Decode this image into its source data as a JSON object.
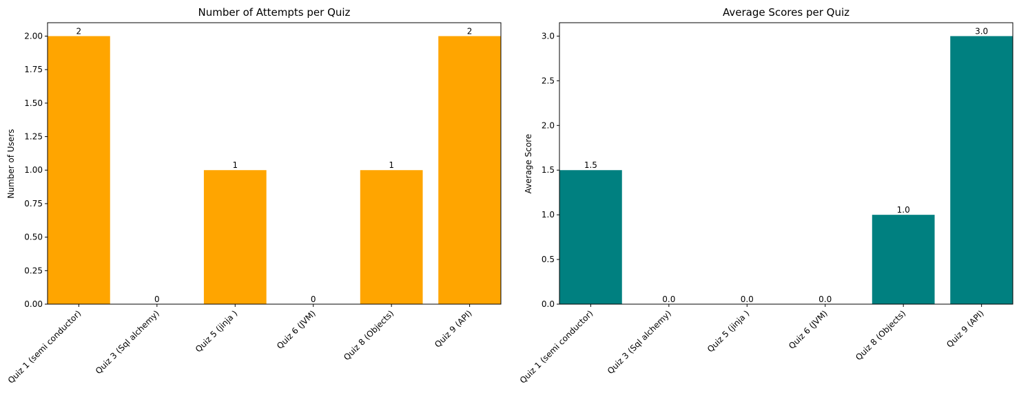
{
  "chart_data": [
    {
      "type": "bar",
      "title": "Number of Attempts per Quiz",
      "xlabel": "",
      "ylabel": "Number of Users",
      "categories": [
        "Quiz 1 (semi conductor)",
        "Quiz 3 (Sql alchemy)",
        "Quiz 5 (jinja )",
        "Quiz 6 (JVM)",
        "Quiz 8 (Objects)",
        "Quiz 9 (API)"
      ],
      "values": [
        2,
        0,
        1,
        0,
        1,
        2
      ],
      "value_labels": [
        "2",
        "0",
        "1",
        "0",
        "1",
        "2"
      ],
      "ylim": [
        0,
        2.1
      ],
      "yticks": [
        0,
        0.25,
        0.5,
        0.75,
        1.0,
        1.25,
        1.5,
        1.75,
        2.0
      ],
      "ytick_labels": [
        "0.00",
        "0.25",
        "0.50",
        "0.75",
        "1.00",
        "1.25",
        "1.50",
        "1.75",
        "2.00"
      ],
      "color": "#FFA500",
      "grid": false,
      "legend": "none"
    },
    {
      "type": "bar",
      "title": "Average Scores per Quiz",
      "xlabel": "",
      "ylabel": "Average Score",
      "categories": [
        "Quiz 1 (semi conductor)",
        "Quiz 3 (Sql alchemy)",
        "Quiz 5 (jinja )",
        "Quiz 6 (JVM)",
        "Quiz 8 (Objects)",
        "Quiz 9 (API)"
      ],
      "values": [
        1.5,
        0.0,
        0.0,
        0.0,
        1.0,
        3.0
      ],
      "value_labels": [
        "1.5",
        "0.0",
        "0.0",
        "0.0",
        "1.0",
        "3.0"
      ],
      "ylim": [
        0,
        3.15
      ],
      "yticks": [
        0,
        0.5,
        1.0,
        1.5,
        2.0,
        2.5,
        3.0
      ],
      "ytick_labels": [
        "0.0",
        "0.5",
        "1.0",
        "1.5",
        "2.0",
        "2.5",
        "3.0"
      ],
      "color": "#008080",
      "grid": false,
      "legend": "none"
    }
  ]
}
